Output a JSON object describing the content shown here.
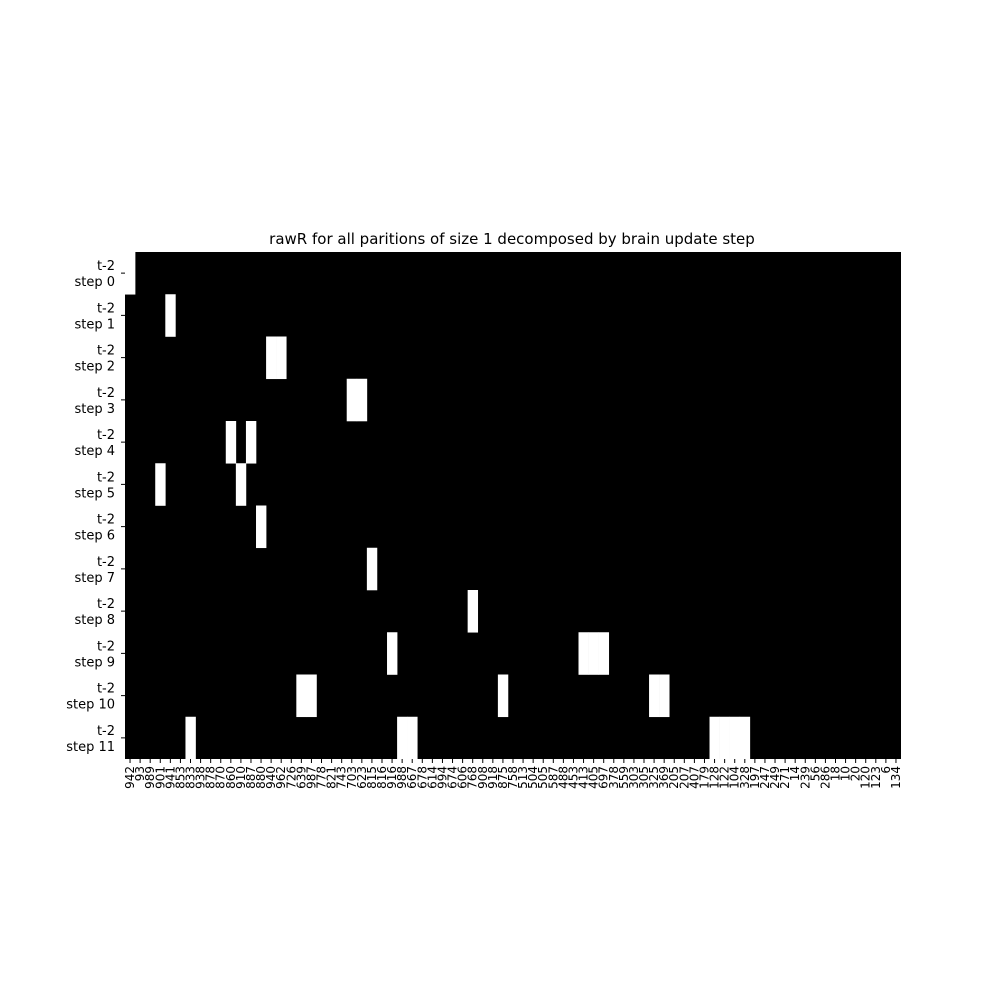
{
  "chart_data": {
    "type": "heatmap",
    "title": "rawR for all paritions of size 1 decomposed by brain update step",
    "xlabel": "",
    "ylabel": "",
    "colormap": "gray",
    "colors": {
      "background": "#ffffff",
      "cell_low": "#000000",
      "cell_high": "#ffffff"
    },
    "value_range": [
      0,
      1
    ],
    "grid": false,
    "rows": [
      {
        "line1": "t-2",
        "line2": "step 0"
      },
      {
        "line1": "t-2",
        "line2": "step 1"
      },
      {
        "line1": "t-2",
        "line2": "step 2"
      },
      {
        "line1": "t-2",
        "line2": "step 3"
      },
      {
        "line1": "t-2",
        "line2": "step 4"
      },
      {
        "line1": "t-2",
        "line2": "step 5"
      },
      {
        "line1": "t-2",
        "line2": "step 6"
      },
      {
        "line1": "t-2",
        "line2": "step 7"
      },
      {
        "line1": "t-2",
        "line2": "step 8"
      },
      {
        "line1": "t-2",
        "line2": "step 9"
      },
      {
        "line1": "t-2",
        "line2": "step 10"
      },
      {
        "line1": "t-2",
        "line2": "step 11"
      }
    ],
    "columns": [
      "942",
      "93",
      "989",
      "901",
      "941",
      "853",
      "833",
      "938",
      "878",
      "870",
      "860",
      "910",
      "887",
      "880",
      "940",
      "962",
      "726",
      "639",
      "987",
      "778",
      "821",
      "743",
      "703",
      "623",
      "815",
      "816",
      "916",
      "988",
      "667",
      "678",
      "614",
      "994",
      "674",
      "606",
      "768",
      "908",
      "918",
      "875",
      "758",
      "513",
      "504",
      "505",
      "587",
      "488",
      "453",
      "413",
      "405",
      "697",
      "378",
      "559",
      "303",
      "305",
      "325",
      "369",
      "205",
      "207",
      "407",
      "179",
      "128",
      "122",
      "104",
      "328",
      "197",
      "247",
      "249",
      "271",
      "14",
      "239",
      "56",
      "286",
      "18",
      "10",
      "20",
      "120",
      "123",
      "6",
      "134"
    ],
    "columns_note": "",
    "high_cells": [
      {
        "row": 0,
        "col": 0,
        "value": 1
      },
      {
        "row": 1,
        "col": 4,
        "value": 1
      },
      {
        "row": 2,
        "col": 14,
        "value": 1
      },
      {
        "row": 2,
        "col": 15,
        "value": 1
      },
      {
        "row": 3,
        "col": 22,
        "value": 1
      },
      {
        "row": 3,
        "col": 23,
        "value": 1
      },
      {
        "row": 4,
        "col": 10,
        "value": 1
      },
      {
        "row": 4,
        "col": 12,
        "value": 1
      },
      {
        "row": 5,
        "col": 3,
        "value": 1
      },
      {
        "row": 5,
        "col": 11,
        "value": 1
      },
      {
        "row": 6,
        "col": 13,
        "value": 1
      },
      {
        "row": 7,
        "col": 24,
        "value": 1
      },
      {
        "row": 8,
        "col": 34,
        "value": 1
      },
      {
        "row": 9,
        "col": 26,
        "value": 1
      },
      {
        "row": 9,
        "col": 45,
        "value": 1
      },
      {
        "row": 9,
        "col": 46,
        "value": 1
      },
      {
        "row": 9,
        "col": 47,
        "value": 1
      },
      {
        "row": 10,
        "col": 17,
        "value": 1
      },
      {
        "row": 10,
        "col": 18,
        "value": 1
      },
      {
        "row": 10,
        "col": 37,
        "value": 1
      },
      {
        "row": 10,
        "col": 52,
        "value": 1
      },
      {
        "row": 10,
        "col": 53,
        "value": 1
      },
      {
        "row": 11,
        "col": 6,
        "value": 1
      },
      {
        "row": 11,
        "col": 27,
        "value": 1
      },
      {
        "row": 11,
        "col": 28,
        "value": 1
      },
      {
        "row": 11,
        "col": 58,
        "value": 1
      },
      {
        "row": 11,
        "col": 59,
        "value": 1
      },
      {
        "row": 11,
        "col": 60,
        "value": 1
      },
      {
        "row": 11,
        "col": 61,
        "value": 1
      }
    ]
  }
}
